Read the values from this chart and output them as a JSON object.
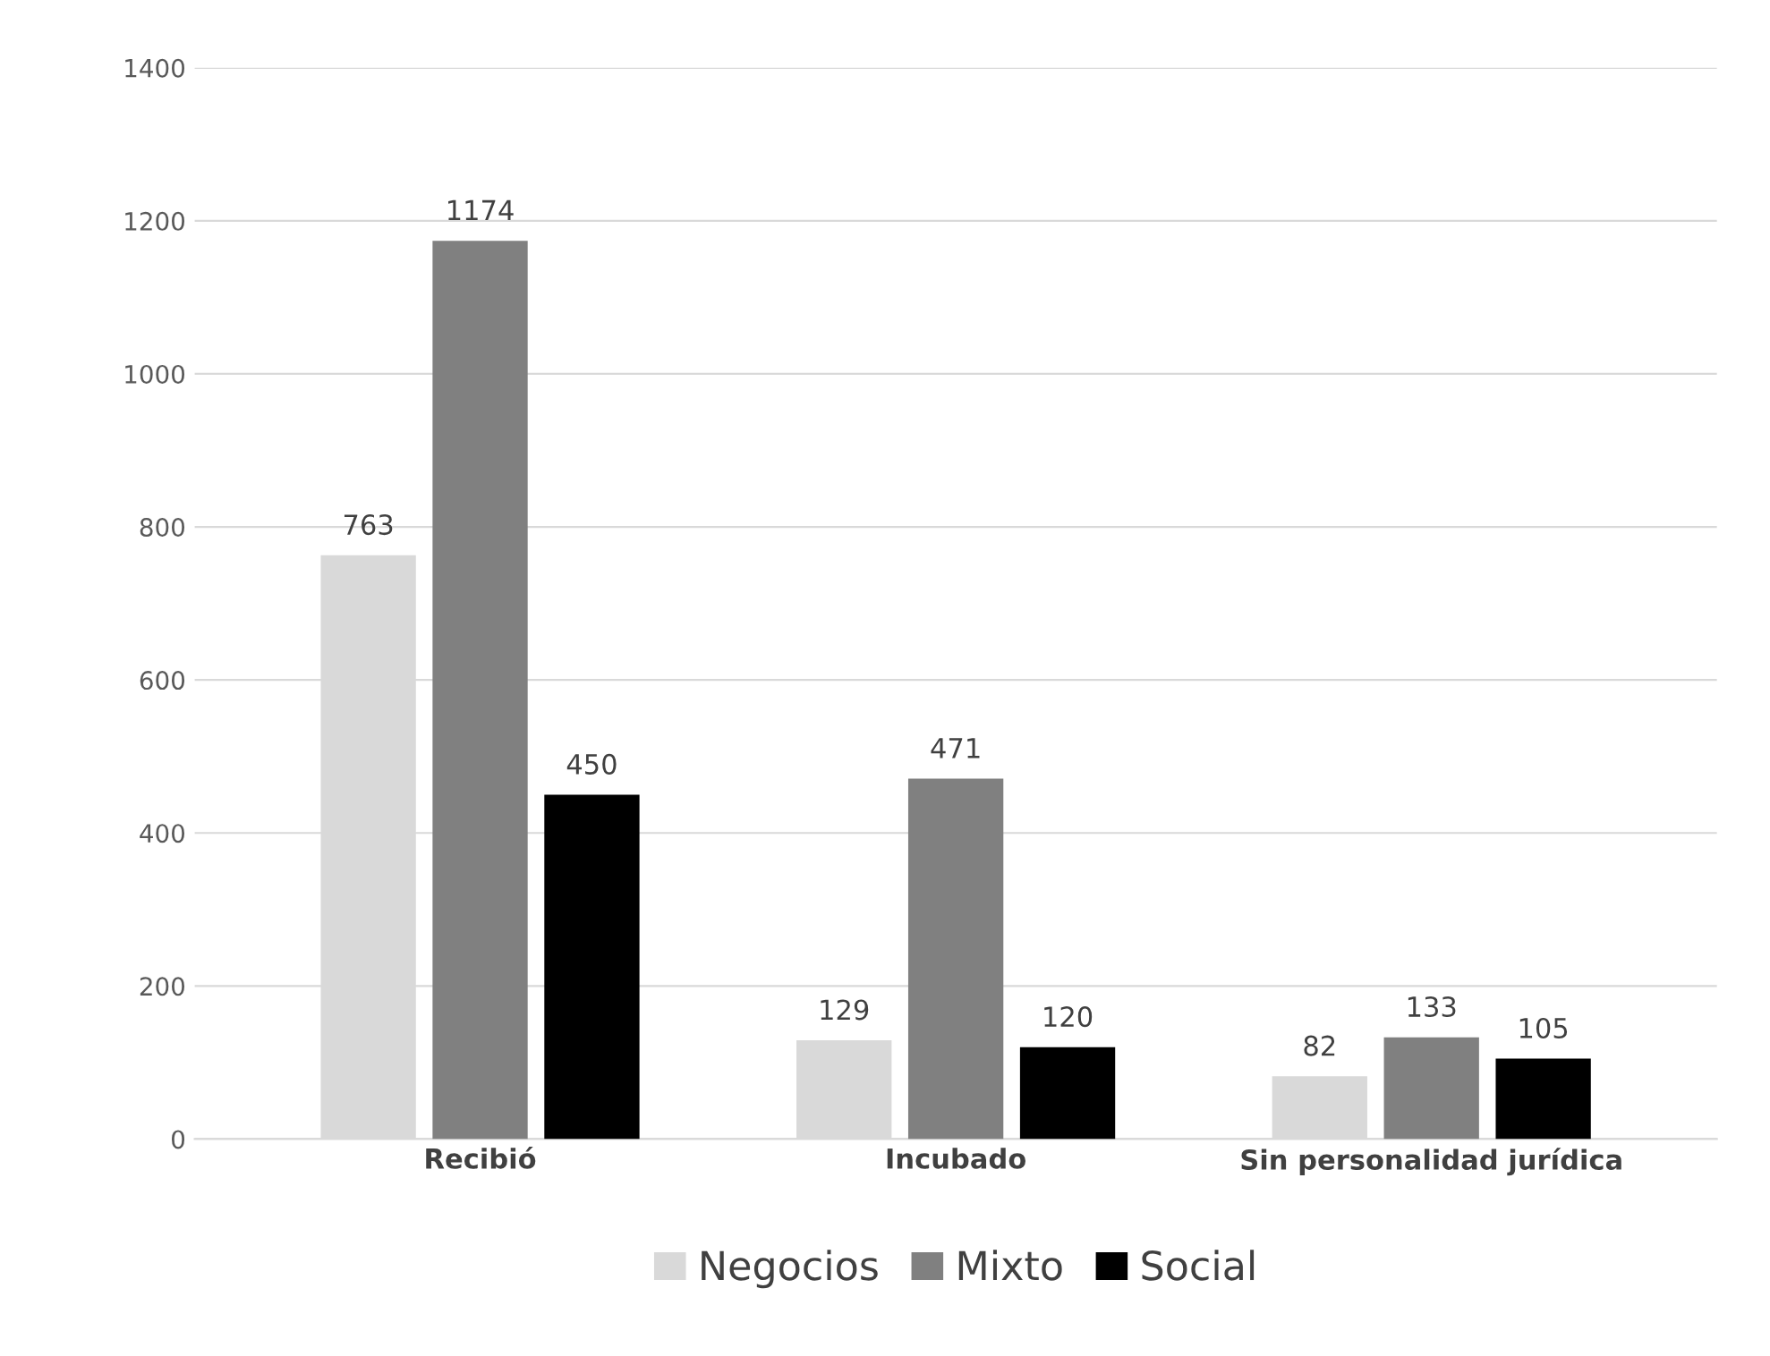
{
  "chart_data": {
    "type": "bar",
    "categories": [
      "Recibió",
      "Incubado",
      "Sin personalidad jurídica"
    ],
    "series": [
      {
        "name": "Negocios",
        "color": "#d9d9d9",
        "values": [
          763,
          129,
          82
        ]
      },
      {
        "name": "Mixto",
        "color": "#808080",
        "values": [
          1174,
          471,
          133
        ]
      },
      {
        "name": "Social",
        "color": "#000000",
        "values": [
          450,
          120,
          105
        ]
      }
    ],
    "ylim": [
      0,
      1400
    ],
    "yticks": [
      0,
      200,
      400,
      600,
      800,
      1000,
      1200,
      1400
    ],
    "grid": "y",
    "legend": "bottom",
    "data_labels": true
  }
}
